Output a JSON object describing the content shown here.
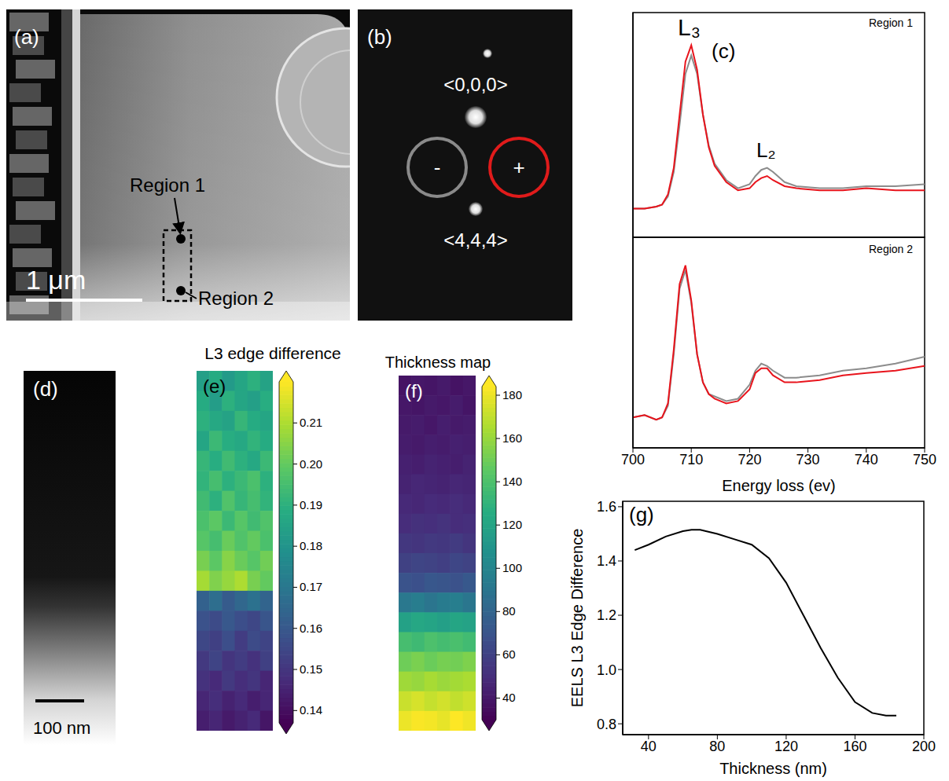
{
  "panels": {
    "a": {
      "label": "(a)",
      "regions": [
        "Region 1",
        "Region 2"
      ],
      "scale_bar": "1 μm"
    },
    "b": {
      "label": "(b)",
      "spots": [
        "<0,0,0>",
        "<4,4,4>"
      ],
      "apertures": [
        "-",
        "+"
      ]
    },
    "c": {
      "label": "(c)"
    },
    "d": {
      "label": "(d)",
      "scale_bar": "100 nm"
    },
    "e": {
      "label": "(e)",
      "title": "L3 edge difference",
      "cells": [
        [
          0.184,
          0.188,
          0.182,
          0.186,
          0.19,
          0.185
        ],
        [
          0.188,
          0.183,
          0.19,
          0.186,
          0.184,
          0.189
        ],
        [
          0.19,
          0.187,
          0.185,
          0.192,
          0.188,
          0.186
        ],
        [
          0.186,
          0.193,
          0.189,
          0.187,
          0.191,
          0.188
        ],
        [
          0.192,
          0.189,
          0.194,
          0.19,
          0.187,
          0.193
        ],
        [
          0.191,
          0.195,
          0.19,
          0.193,
          0.196,
          0.19
        ],
        [
          0.194,
          0.19,
          0.197,
          0.192,
          0.195,
          0.191
        ],
        [
          0.196,
          0.199,
          0.193,
          0.198,
          0.194,
          0.197
        ],
        [
          0.198,
          0.195,
          0.201,
          0.197,
          0.2,
          0.196
        ],
        [
          0.203,
          0.199,
          0.205,
          0.201,
          0.198,
          0.202
        ],
        [
          0.209,
          0.204,
          0.207,
          0.21,
          0.203,
          0.2
        ],
        [
          0.163,
          0.167,
          0.161,
          0.165,
          0.168,
          0.164
        ],
        [
          0.158,
          0.156,
          0.16,
          0.157,
          0.155,
          0.159
        ],
        [
          0.155,
          0.153,
          0.157,
          0.152,
          0.156,
          0.154
        ],
        [
          0.151,
          0.154,
          0.15,
          0.152,
          0.149,
          0.153
        ],
        [
          0.149,
          0.147,
          0.151,
          0.148,
          0.15,
          0.146
        ],
        [
          0.146,
          0.148,
          0.145,
          0.147,
          0.144,
          0.146
        ],
        [
          0.144,
          0.146,
          0.143,
          0.145,
          0.147,
          0.142
        ]
      ],
      "colorbar": {
        "range": [
          0.137,
          0.22
        ],
        "ticks": [
          0.14,
          0.15,
          0.16,
          0.17,
          0.18,
          0.19,
          {
            "value": 0.2,
            "label": "0.20"
          },
          0.21
        ]
      }
    },
    "f": {
      "label": "(f)",
      "title": "Thickness map",
      "cells": [
        [
          38,
          40,
          39,
          41,
          38,
          40
        ],
        [
          40,
          39,
          41,
          40,
          42,
          39
        ],
        [
          41,
          42,
          40,
          43,
          41,
          42
        ],
        [
          42,
          41,
          43,
          42,
          44,
          43
        ],
        [
          44,
          43,
          45,
          44,
          43,
          45
        ],
        [
          45,
          47,
          46,
          45,
          47,
          46
        ],
        [
          48,
          47,
          49,
          48,
          50,
          48
        ],
        [
          50,
          52,
          51,
          53,
          50,
          51
        ],
        [
          55,
          54,
          56,
          55,
          57,
          54
        ],
        [
          60,
          62,
          61,
          59,
          63,
          61
        ],
        [
          70,
          68,
          72,
          71,
          69,
          73
        ],
        [
          92,
          95,
          90,
          94,
          96,
          91
        ],
        [
          118,
          122,
          120,
          117,
          121,
          119
        ],
        [
          138,
          135,
          140,
          137,
          139,
          136
        ],
        [
          150,
          153,
          149,
          152,
          151,
          154
        ],
        [
          162,
          160,
          164,
          161,
          163,
          165
        ],
        [
          172,
          175,
          171,
          174,
          170,
          173
        ],
        [
          180,
          183,
          182,
          179,
          184,
          181
        ]
      ],
      "colorbar": {
        "range": [
          30,
          184
        ],
        "ticks": [
          40,
          60,
          80,
          100,
          120,
          140,
          160,
          180
        ]
      }
    },
    "g": {
      "label": "(g)"
    }
  },
  "chart_data": [
    {
      "type": "line",
      "title": "Region 1",
      "annotations": [
        "L₃",
        "L₂"
      ],
      "x": [
        700,
        702,
        704,
        705,
        706,
        707,
        708,
        709,
        710,
        711,
        712,
        713,
        714,
        716,
        718,
        720,
        721,
        722,
        723,
        724,
        726,
        728,
        732,
        736,
        740,
        745,
        750
      ],
      "series": [
        {
          "color": "#8c8c8c",
          "values": [
            0.14,
            0.14,
            0.15,
            0.16,
            0.2,
            0.32,
            0.55,
            0.8,
            0.89,
            0.8,
            0.6,
            0.45,
            0.36,
            0.28,
            0.24,
            0.26,
            0.3,
            0.33,
            0.34,
            0.32,
            0.27,
            0.25,
            0.24,
            0.24,
            0.25,
            0.25,
            0.26
          ]
        },
        {
          "color": "#e8141c",
          "values": [
            0.14,
            0.14,
            0.15,
            0.16,
            0.21,
            0.34,
            0.6,
            0.86,
            0.94,
            0.82,
            0.6,
            0.44,
            0.35,
            0.27,
            0.23,
            0.24,
            0.27,
            0.29,
            0.3,
            0.28,
            0.25,
            0.24,
            0.23,
            0.23,
            0.24,
            0.23,
            0.23
          ]
        }
      ],
      "xlim": [
        700,
        750
      ],
      "xticks": [
        700,
        710,
        720,
        730,
        740,
        750
      ],
      "ylim": [
        0,
        1.1
      ],
      "yticks": [
        0.2,
        0.4,
        0.6,
        0.8,
        1
      ],
      "tick_labels": false
    },
    {
      "type": "line",
      "title": "Region 2",
      "xlabel": "Energy loss (ev)",
      "x": [
        700,
        702,
        704,
        705,
        706,
        707,
        708,
        709,
        710,
        711,
        712,
        713,
        714,
        716,
        718,
        720,
        721,
        722,
        723,
        724,
        726,
        728,
        732,
        736,
        740,
        745,
        750
      ],
      "series": [
        {
          "color": "#8c8c8c",
          "values": [
            0.23,
            0.24,
            0.22,
            0.23,
            0.28,
            0.5,
            0.78,
            0.86,
            0.72,
            0.5,
            0.38,
            0.33,
            0.32,
            0.3,
            0.31,
            0.37,
            0.43,
            0.46,
            0.45,
            0.43,
            0.4,
            0.4,
            0.41,
            0.43,
            0.44,
            0.46,
            0.49
          ]
        },
        {
          "color": "#e8141c",
          "values": [
            0.23,
            0.24,
            0.22,
            0.23,
            0.29,
            0.52,
            0.8,
            0.88,
            0.73,
            0.5,
            0.38,
            0.33,
            0.31,
            0.29,
            0.3,
            0.35,
            0.42,
            0.44,
            0.44,
            0.41,
            0.38,
            0.38,
            0.39,
            0.41,
            0.42,
            0.43,
            0.45
          ]
        }
      ],
      "xlim": [
        700,
        750
      ],
      "xticks": [
        700,
        710,
        720,
        730,
        740,
        750
      ],
      "ylim": [
        0.1,
        1
      ],
      "yticks": [
        0.2,
        0.4,
        0.6,
        0.8
      ],
      "tick_labels": "x"
    },
    {
      "type": "line",
      "xlabel": "Thickness (nm)",
      "ylabel": "EELS L3 Edge Difference",
      "x": [
        32,
        40,
        50,
        60,
        65,
        70,
        80,
        90,
        100,
        110,
        120,
        130,
        140,
        150,
        160,
        170,
        178,
        184
      ],
      "series": [
        {
          "color": "#000000",
          "values": [
            1.44,
            1.46,
            1.49,
            1.51,
            1.515,
            1.515,
            1.5,
            1.48,
            1.46,
            1.41,
            1.32,
            1.2,
            1.08,
            0.97,
            0.88,
            0.84,
            0.83,
            0.83
          ]
        }
      ],
      "xlim": [
        25,
        200
      ],
      "xticks": [
        40,
        80,
        120,
        160,
        200
      ],
      "ylim": [
        0.76,
        1.62
      ],
      "yticks": [
        0.8,
        {
          "value": 1,
          "label": "1.0"
        },
        1.2,
        1.4,
        1.6
      ]
    }
  ]
}
